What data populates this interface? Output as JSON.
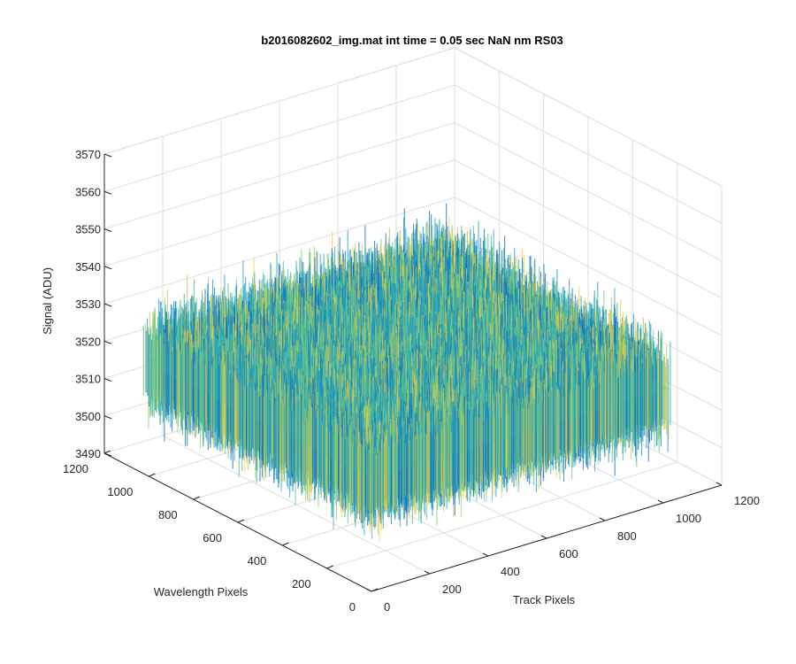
{
  "chart_data": {
    "type": "surface",
    "title": "b2016082602_img.mat int time = 0.05 sec  NaN nm RS03",
    "xlabel": "Track Pixels",
    "ylabel": "Wavelength Pixels",
    "zlabel": "Signal (ADU)",
    "xlim": [
      0,
      1200
    ],
    "ylim": [
      0,
      1200
    ],
    "zlim": [
      3490,
      3570
    ],
    "x_ticks": [
      0,
      200,
      400,
      600,
      800,
      1000,
      1200
    ],
    "y_ticks": [
      0,
      200,
      400,
      600,
      800,
      1000,
      1200
    ],
    "z_ticks": [
      3490,
      3500,
      3510,
      3520,
      3530,
      3540,
      3550,
      3560,
      3570
    ],
    "surface": {
      "x_range": [
        0,
        1024
      ],
      "y_range": [
        0,
        1024
      ],
      "mean_signal": 3520,
      "noise_min": 3495,
      "noise_max": 3560,
      "colormap": [
        "#0d72bd",
        "#1a9bd0",
        "#26b0b6",
        "#4bbf9a",
        "#86c977",
        "#c6c658",
        "#f2d23c"
      ]
    },
    "grid": true,
    "view": "3d-oblique"
  }
}
